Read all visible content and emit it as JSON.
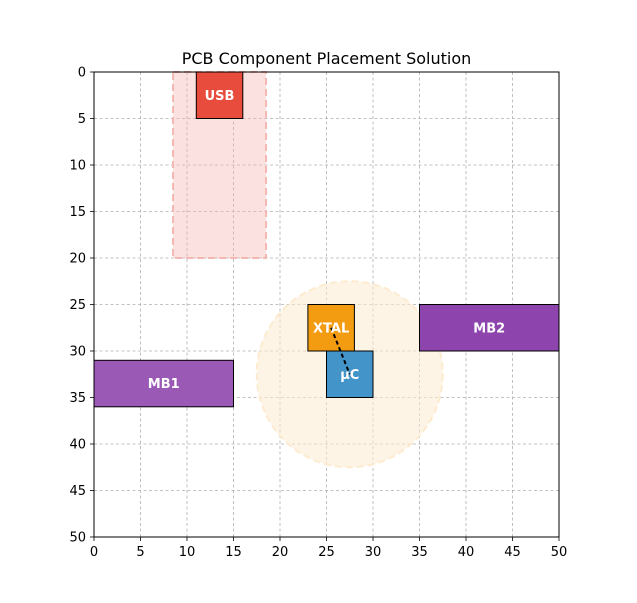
{
  "chart_data": {
    "type": "layout",
    "title": "PCB Component Placement Solution",
    "xlabel": "",
    "ylabel": "",
    "xlim": [
      0,
      50
    ],
    "ylim": [
      50,
      0
    ],
    "y_inverted": true,
    "grid": true,
    "x_ticks": [
      0,
      5,
      10,
      15,
      20,
      25,
      30,
      35,
      40,
      45,
      50
    ],
    "y_ticks": [
      0,
      5,
      10,
      15,
      20,
      25,
      30,
      35,
      40,
      45,
      50
    ],
    "zones": [
      {
        "shape": "rect",
        "x": 8.5,
        "y": 0,
        "w": 10,
        "h": 20,
        "color": "#f5b7b1"
      },
      {
        "shape": "circle",
        "cx": 27.5,
        "cy": 32.5,
        "r": 10,
        "color": "#fdebd0"
      }
    ],
    "components": [
      {
        "label": "USB",
        "x": 11,
        "y": 0,
        "w": 5,
        "h": 5,
        "color": "#e74c3c"
      },
      {
        "label": "XTAL",
        "x": 23,
        "y": 25,
        "w": 5,
        "h": 5,
        "color": "#f39c12"
      },
      {
        "label": "μC",
        "x": 25,
        "y": 30,
        "w": 5,
        "h": 5,
        "color": "#4394c8"
      },
      {
        "label": "MB1",
        "x": 0,
        "y": 31,
        "w": 15,
        "h": 5,
        "color": "#9b59b6"
      },
      {
        "label": "MB2",
        "x": 35,
        "y": 25,
        "w": 15,
        "h": 5,
        "color": "#8e44ad"
      }
    ],
    "connections": [
      {
        "from": "XTAL",
        "to": "μC",
        "x1": 25.5,
        "y1": 27.5,
        "x2": 27.5,
        "y2": 32.5
      }
    ]
  }
}
